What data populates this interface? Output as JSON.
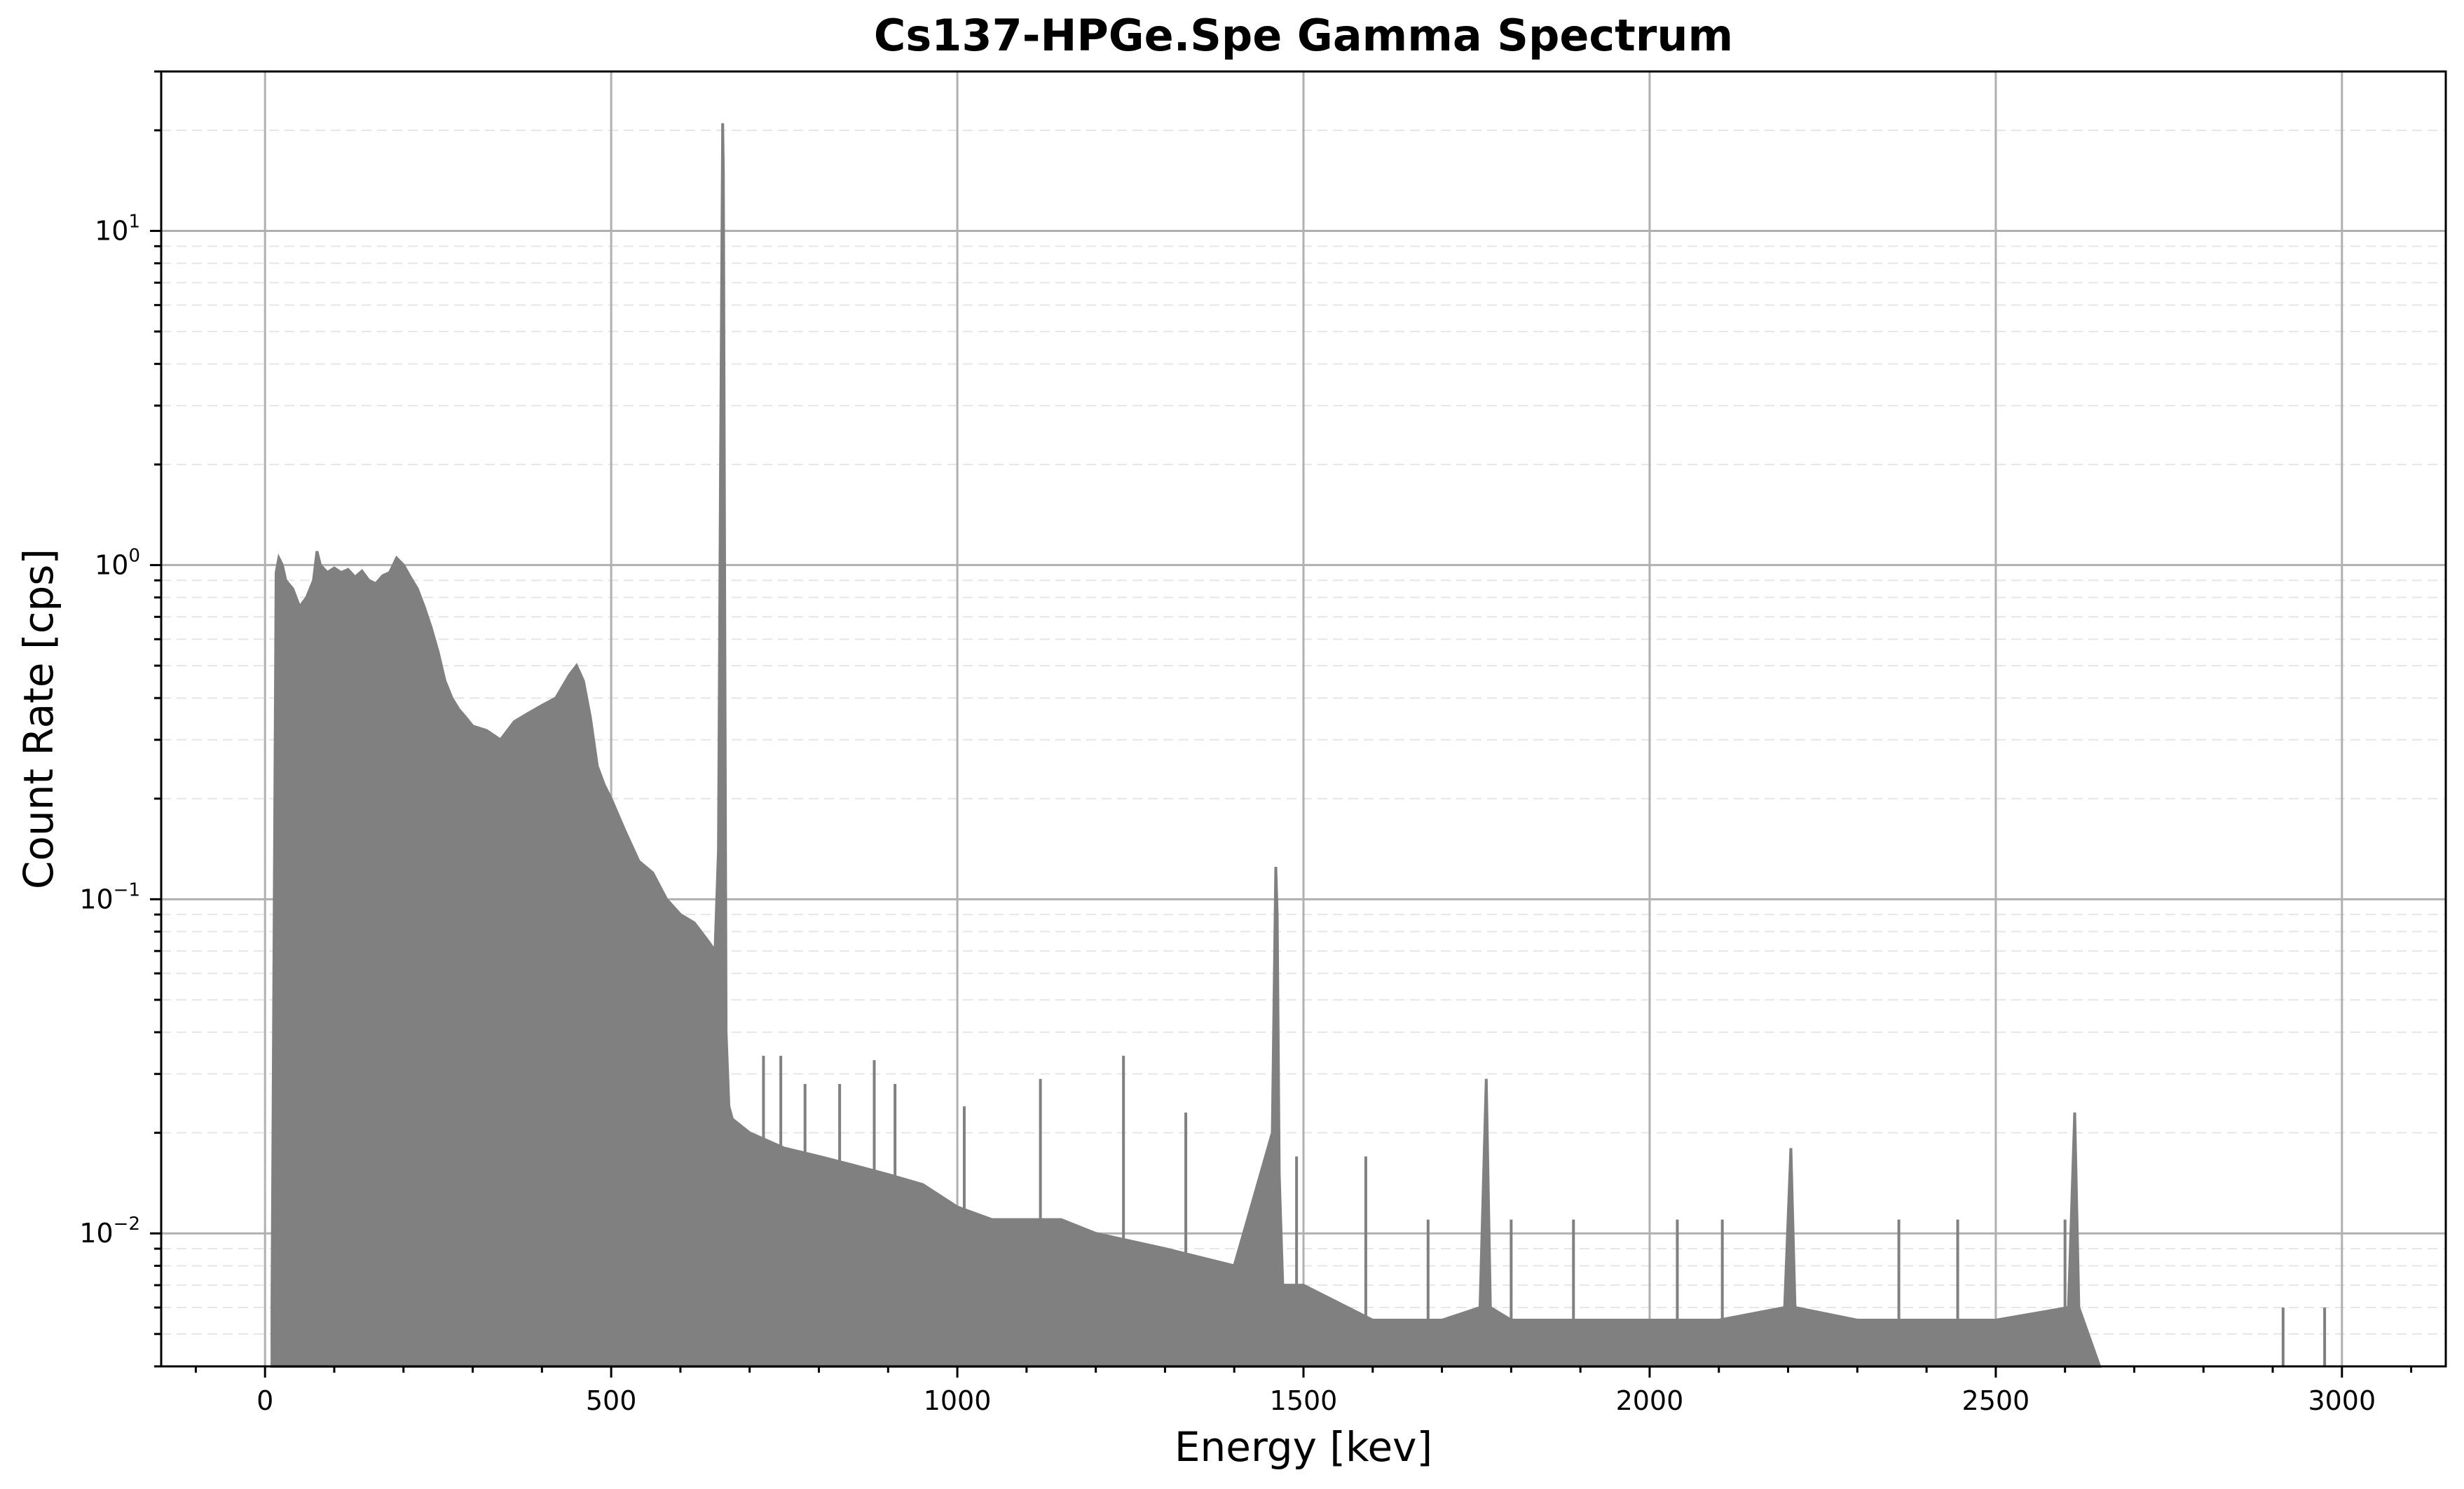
{
  "chart_data": {
    "type": "area",
    "title": "Cs137-HPGe.Spe Gamma Spectrum",
    "xlabel": "Energy [kev]",
    "ylabel": "Count Rate [cps]",
    "xlim": [
      -150,
      3150
    ],
    "ylim": [
      0.004,
      30
    ],
    "yscale": "log",
    "xticks": [
      0,
      500,
      1000,
      1500,
      2000,
      2500,
      3000
    ],
    "xtick_labels": [
      "0",
      "500",
      "1000",
      "1500",
      "2000",
      "2500",
      "3000"
    ],
    "yticks": [
      0.01,
      0.1,
      1,
      10
    ],
    "ytick_labels": [
      {
        "base": "10",
        "exp": "−2"
      },
      {
        "base": "10",
        "exp": "−1"
      },
      {
        "base": "10",
        "exp": "0"
      },
      {
        "base": "10",
        "exp": "1"
      }
    ],
    "grid": true,
    "series_color": "#808080",
    "spectrum": {
      "x": [
        10,
        16,
        20,
        25,
        30,
        40,
        50,
        60,
        70,
        75,
        80,
        90,
        100,
        110,
        120,
        130,
        140,
        150,
        160,
        170,
        180,
        190,
        200,
        210,
        220,
        230,
        240,
        250,
        260,
        270,
        280,
        290,
        300,
        320,
        340,
        360,
        380,
        400,
        420,
        440,
        450,
        460,
        470,
        480,
        490,
        500,
        520,
        540,
        560,
        580,
        600,
        620,
        640,
        650,
        655,
        658,
        661,
        662,
        664,
        666,
        670,
        675,
        700,
        750,
        800,
        850,
        900,
        950,
        1000,
        1050,
        1100,
        1150,
        1200,
        1300,
        1400,
        1455,
        1460,
        1462,
        1465,
        1470,
        1500,
        1600,
        1700,
        1755,
        1764,
        1770,
        1800,
        1900,
        2000,
        2100,
        2195,
        2204,
        2210,
        2300,
        2400,
        2500,
        2605,
        2614,
        2620,
        2650
      ],
      "y": [
        0.006,
        0.95,
        1.05,
        1.0,
        0.9,
        0.85,
        0.75,
        0.8,
        0.9,
        1.1,
        1.0,
        0.95,
        0.98,
        0.95,
        0.97,
        0.92,
        0.96,
        0.9,
        0.88,
        0.93,
        0.95,
        1.05,
        1.0,
        0.92,
        0.85,
        0.75,
        0.65,
        0.55,
        0.45,
        0.4,
        0.37,
        0.35,
        0.33,
        0.32,
        0.3,
        0.34,
        0.36,
        0.38,
        0.4,
        0.47,
        0.5,
        0.45,
        0.35,
        0.25,
        0.22,
        0.2,
        0.16,
        0.13,
        0.12,
        0.1,
        0.09,
        0.085,
        0.075,
        0.07,
        0.14,
        2.0,
        21,
        15,
        0.8,
        0.04,
        0.024,
        0.022,
        0.02,
        0.018,
        0.017,
        0.016,
        0.015,
        0.014,
        0.012,
        0.011,
        0.011,
        0.011,
        0.01,
        0.009,
        0.008,
        0.02,
        0.125,
        0.09,
        0.015,
        0.007,
        0.007,
        0.0055,
        0.0055,
        0.006,
        0.029,
        0.006,
        0.0055,
        0.0055,
        0.0055,
        0.0055,
        0.006,
        0.018,
        0.006,
        0.0055,
        0.0055,
        0.0055,
        0.006,
        0.023,
        0.006,
        0.004
      ]
    },
    "spikes": [
      {
        "x": 720,
        "y": 0.034
      },
      {
        "x": 745,
        "y": 0.034
      },
      {
        "x": 780,
        "y": 0.028
      },
      {
        "x": 830,
        "y": 0.028
      },
      {
        "x": 880,
        "y": 0.033
      },
      {
        "x": 910,
        "y": 0.028
      },
      {
        "x": 1010,
        "y": 0.024
      },
      {
        "x": 1120,
        "y": 0.029
      },
      {
        "x": 1240,
        "y": 0.034
      },
      {
        "x": 1330,
        "y": 0.023
      },
      {
        "x": 1490,
        "y": 0.017
      },
      {
        "x": 1590,
        "y": 0.017
      },
      {
        "x": 1680,
        "y": 0.011
      },
      {
        "x": 1800,
        "y": 0.011
      },
      {
        "x": 1890,
        "y": 0.011
      },
      {
        "x": 2040,
        "y": 0.011
      },
      {
        "x": 2105,
        "y": 0.011
      },
      {
        "x": 2360,
        "y": 0.011
      },
      {
        "x": 2445,
        "y": 0.011
      },
      {
        "x": 2600,
        "y": 0.011
      },
      {
        "x": 2915,
        "y": 0.006
      },
      {
        "x": 2975,
        "y": 0.006
      }
    ]
  }
}
